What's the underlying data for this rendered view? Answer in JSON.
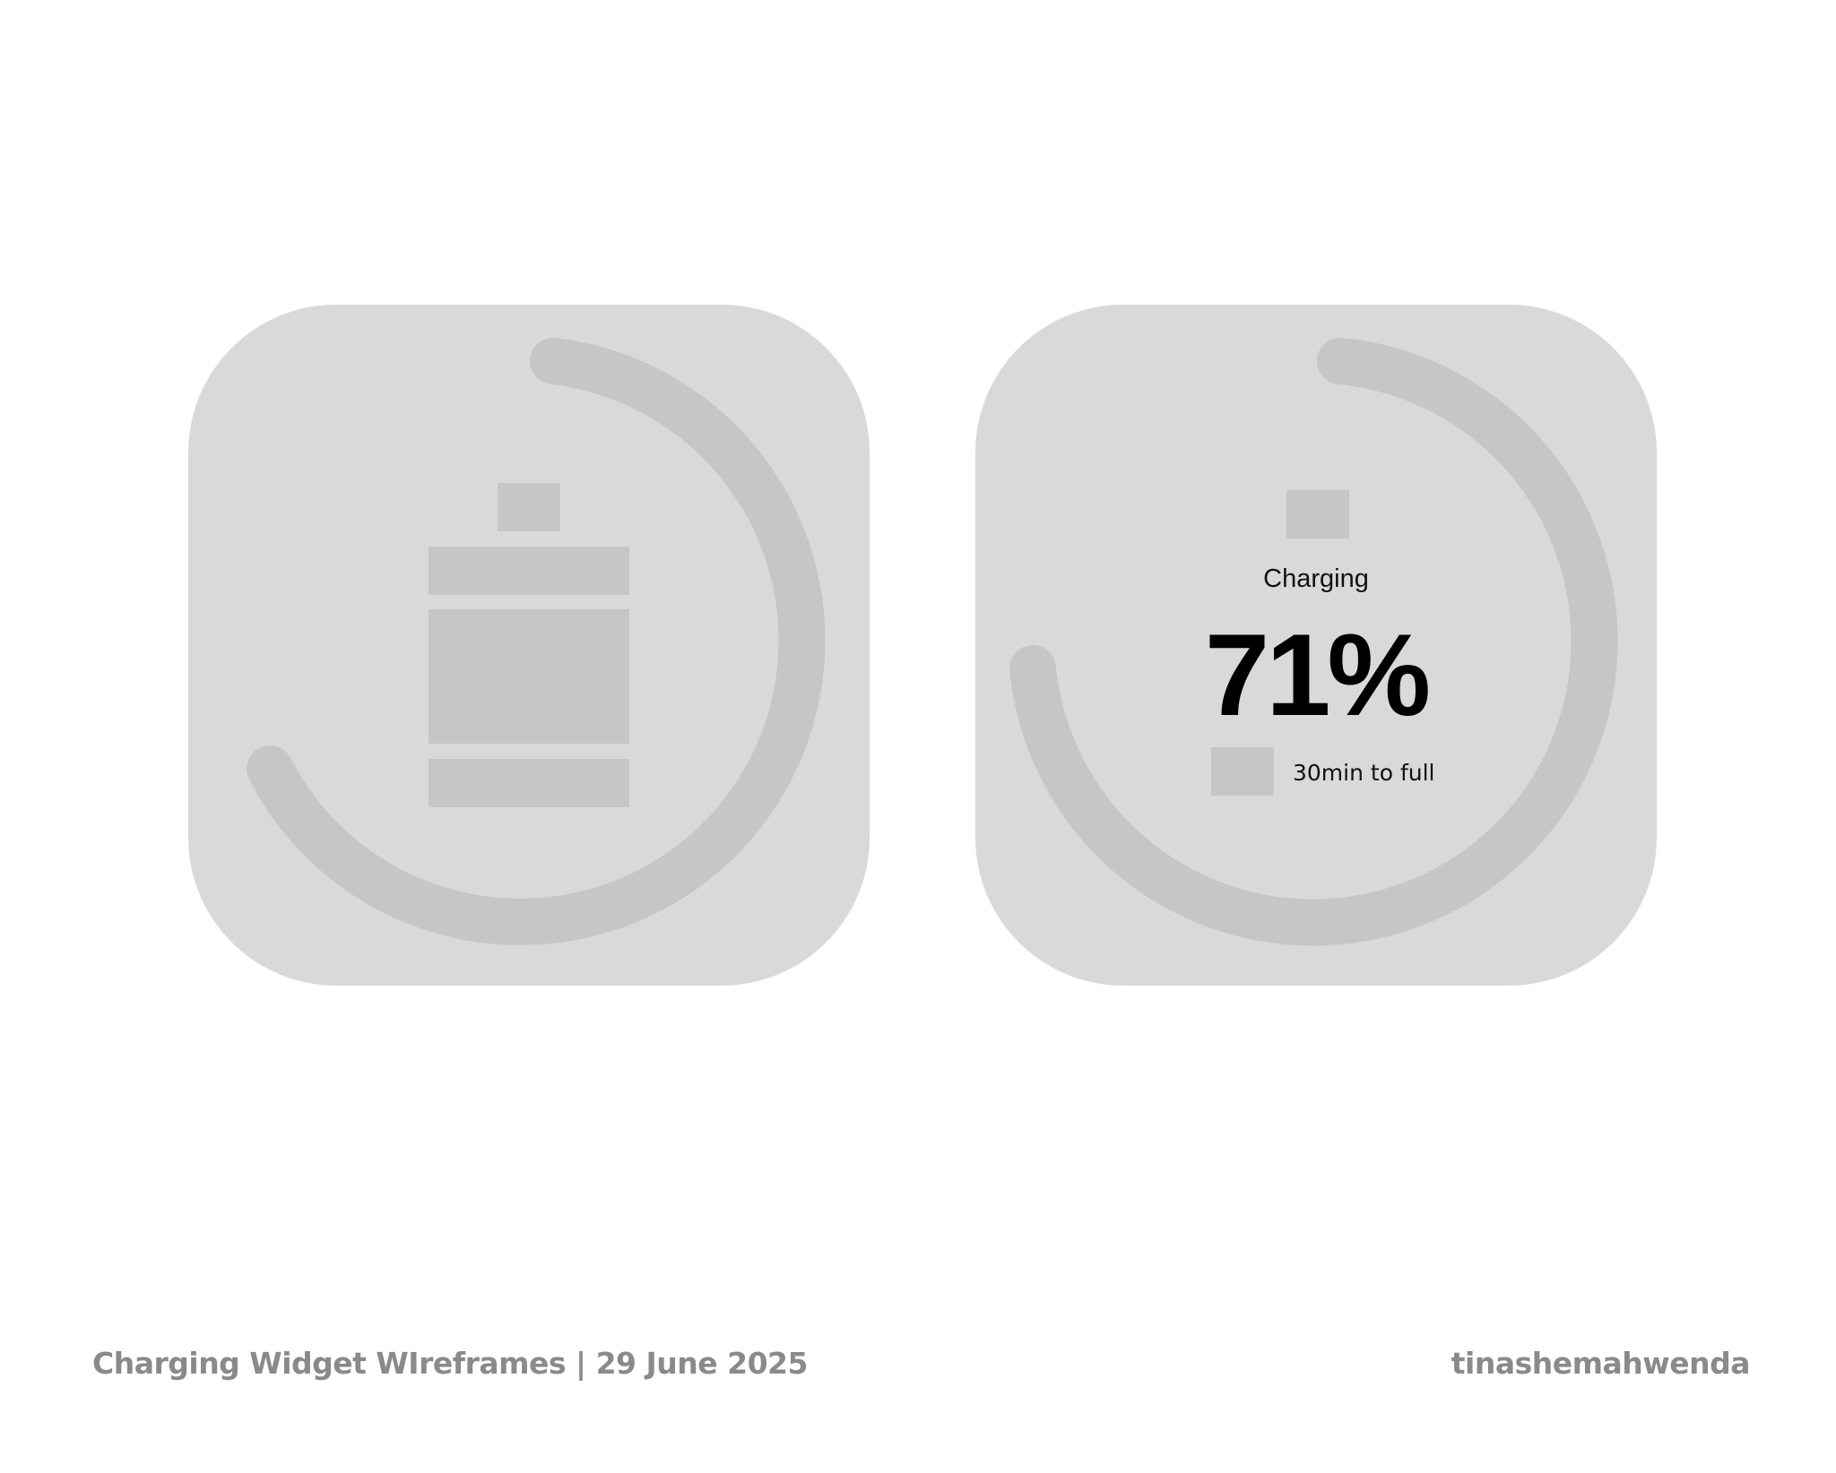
{
  "widgets": [
    {
      "name": "battery-icon-widget",
      "progress_percent": 71
    },
    {
      "name": "charging-status-widget",
      "status_label": "Charging",
      "percent_label": "71%",
      "time_label": "30min to full",
      "progress_percent": 71
    }
  ],
  "footer": {
    "title": "Charging Widget WIreframes | 29 June 2025",
    "author": "tinashemahwenda"
  },
  "colors": {
    "background": "#ffffff",
    "widget_bg": "#d9d9d9",
    "placeholder": "#c6c6c6",
    "text_dark": "#000000",
    "footer_text": "#8a8a8a"
  }
}
